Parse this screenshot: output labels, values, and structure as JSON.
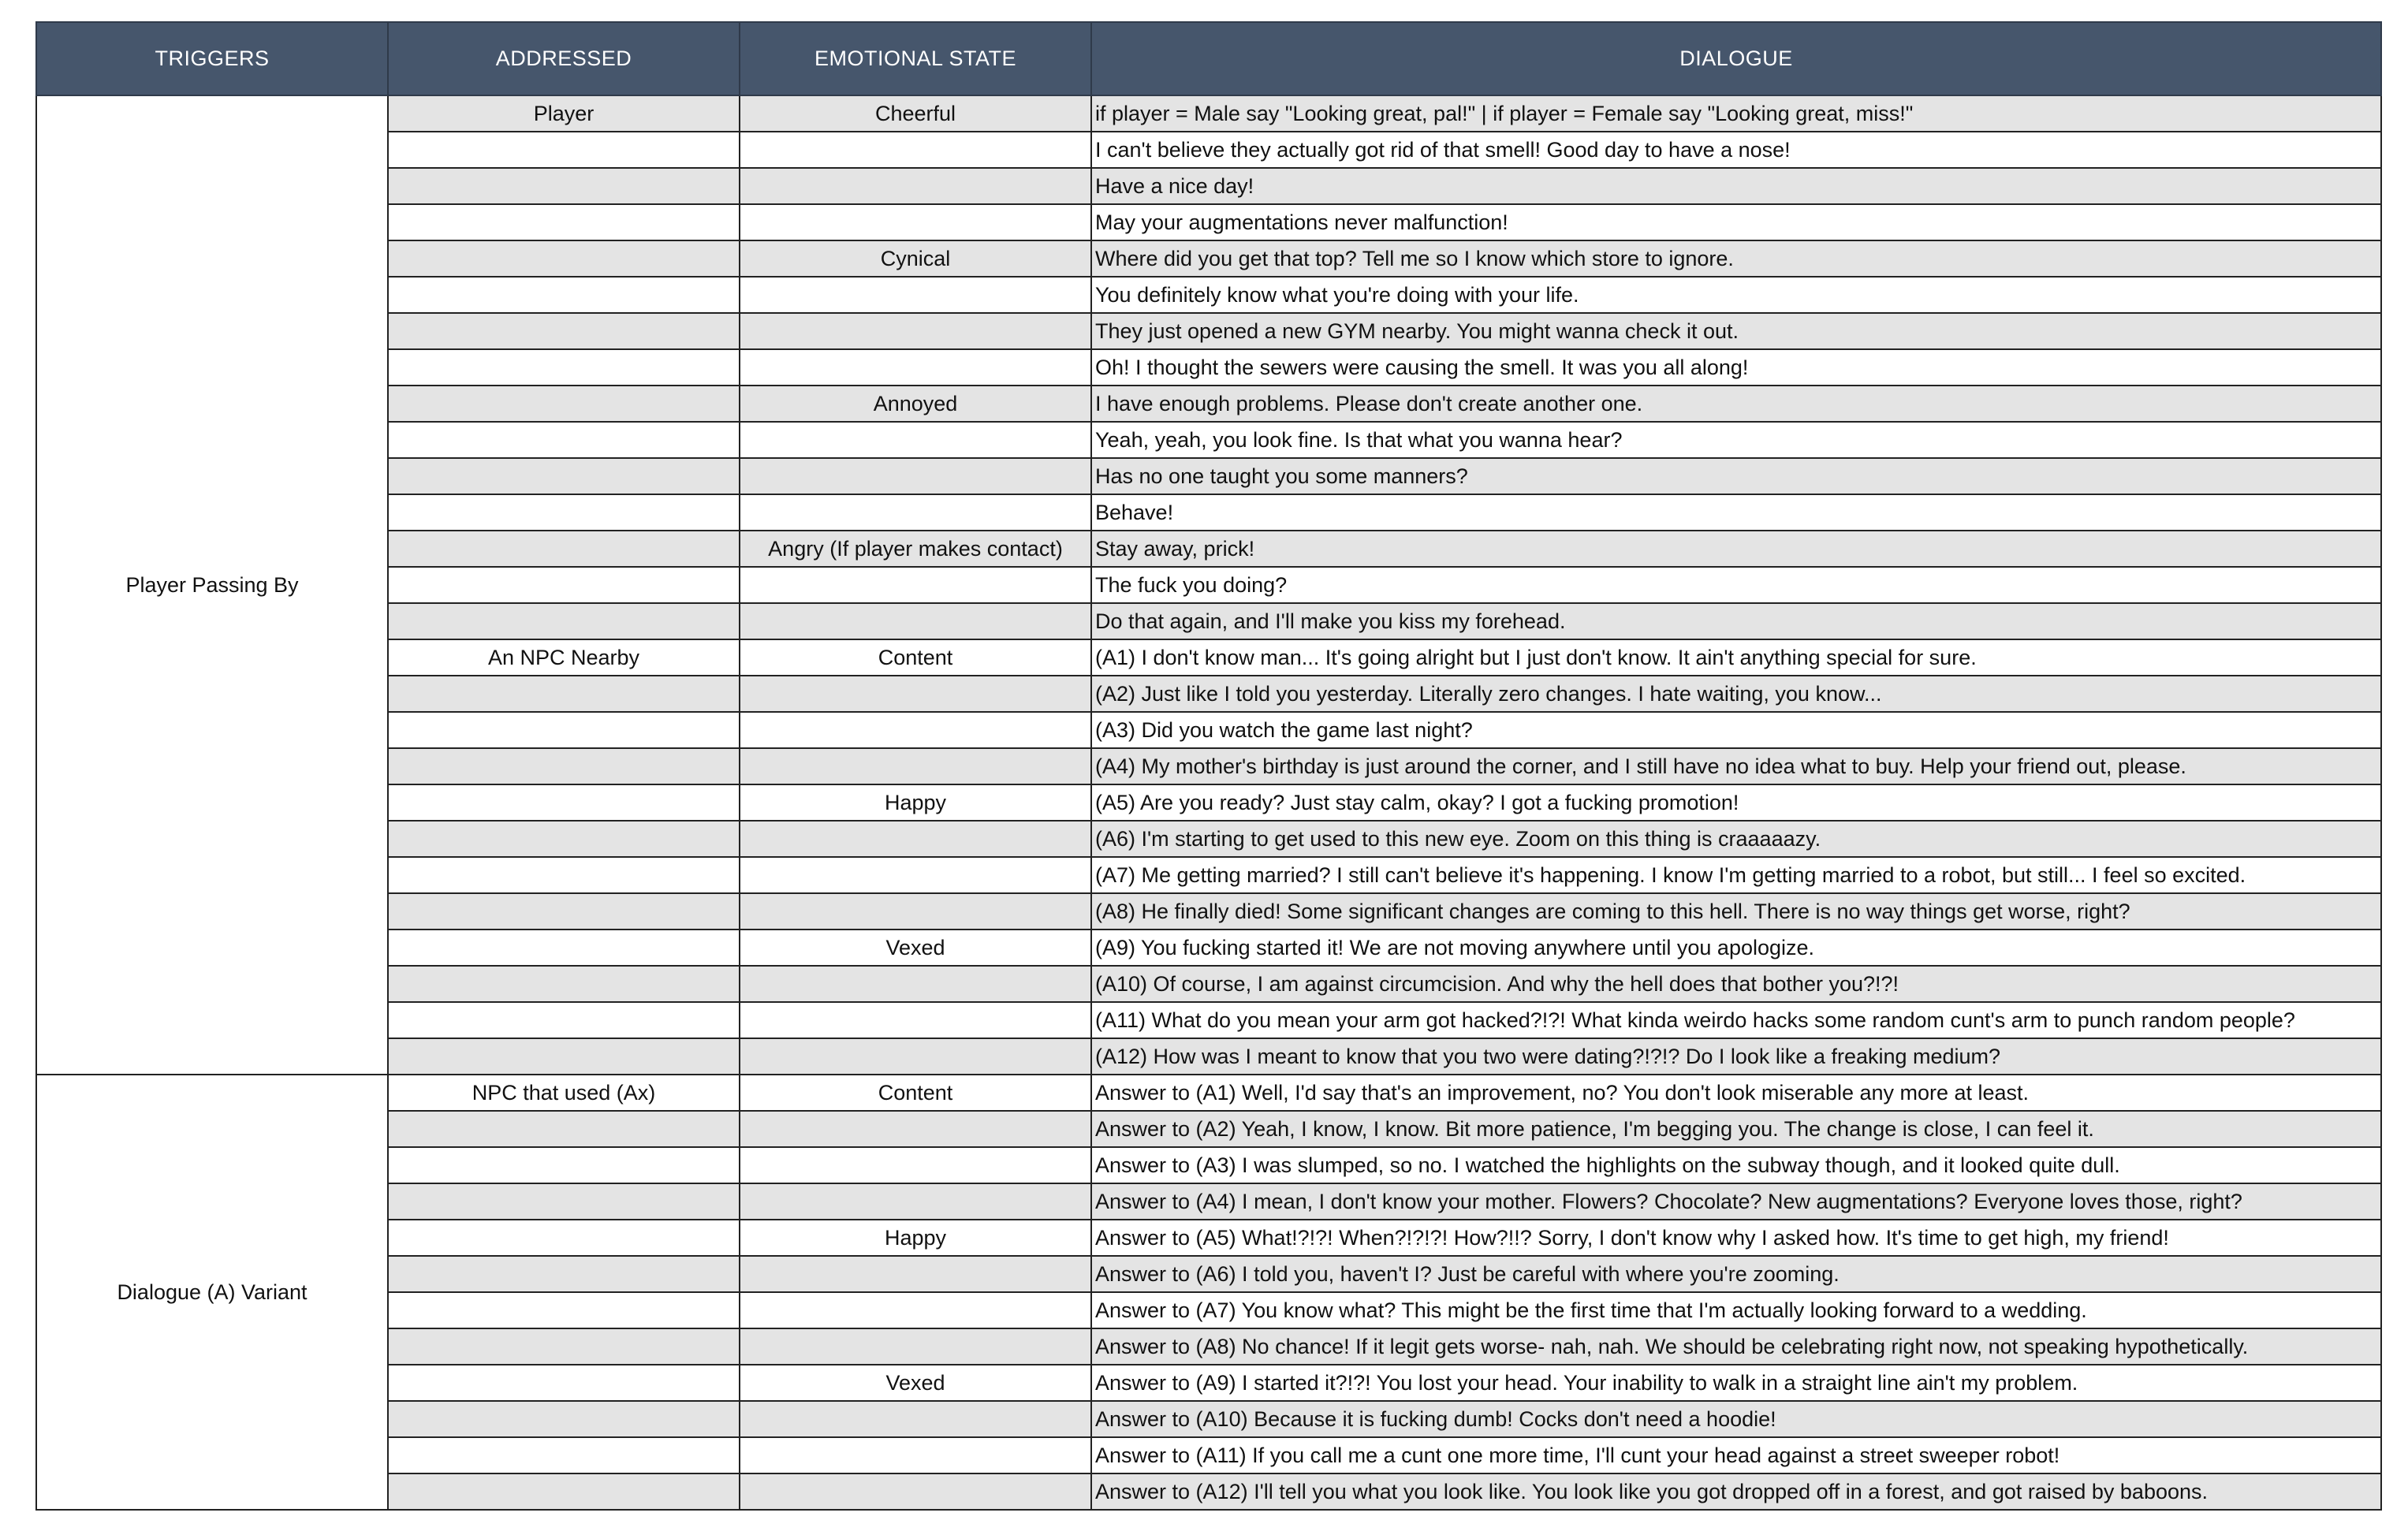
{
  "headers": [
    "TRIGGERS",
    "ADDRESSED",
    "EMOTIONAL STATE",
    "DIALOGUE"
  ],
  "colors": {
    "header_bg": "#46566c",
    "shaded_row": "#e4e4e4"
  },
  "groups": [
    {
      "trigger": "Player Passing By",
      "rows": [
        {
          "addressed": "Player",
          "emotion": "Cheerful",
          "dialogue": "if player = Male say \"Looking great, pal!\"  |  if player = Female say \"Looking great, miss!\""
        },
        {
          "addressed": "",
          "emotion": "",
          "dialogue": "I can't believe they actually got rid of that smell! Good day to have a nose!"
        },
        {
          "addressed": "",
          "emotion": "",
          "dialogue": "Have a nice day!"
        },
        {
          "addressed": "",
          "emotion": "",
          "dialogue": "May your augmentations never malfunction!"
        },
        {
          "addressed": "",
          "emotion": "Cynical",
          "dialogue": "Where did you get that top? Tell me so I know which store to ignore."
        },
        {
          "addressed": "",
          "emotion": "",
          "dialogue": "You definitely know what you're doing with your life."
        },
        {
          "addressed": "",
          "emotion": "",
          "dialogue": "They just opened a new GYM nearby. You might wanna check it out."
        },
        {
          "addressed": "",
          "emotion": "",
          "dialogue": "Oh! I thought the sewers were causing the smell. It was you all along!"
        },
        {
          "addressed": "",
          "emotion": "Annoyed",
          "dialogue": "I have enough problems. Please don't create another one."
        },
        {
          "addressed": "",
          "emotion": "",
          "dialogue": "Yeah, yeah, you look fine. Is that what you wanna hear?"
        },
        {
          "addressed": "",
          "emotion": "",
          "dialogue": "Has no one taught you some manners?"
        },
        {
          "addressed": "",
          "emotion": "",
          "dialogue": "Behave!"
        },
        {
          "addressed": "",
          "emotion": "Angry (If player makes contact)",
          "dialogue": "Stay away, prick!"
        },
        {
          "addressed": "",
          "emotion": "",
          "dialogue": "The fuck you doing?"
        },
        {
          "addressed": "",
          "emotion": "",
          "dialogue": "Do that again, and I'll make you kiss my forehead."
        },
        {
          "addressed": "An NPC Nearby",
          "emotion": "Content",
          "dialogue": "(A1) I don't know man... It's going alright but I just don't know. It ain't anything special for sure."
        },
        {
          "addressed": "",
          "emotion": "",
          "dialogue": "(A2) Just like I told you yesterday. Literally zero changes. I hate waiting, you know..."
        },
        {
          "addressed": "",
          "emotion": "",
          "dialogue": "(A3) Did you watch the game last night?"
        },
        {
          "addressed": "",
          "emotion": "",
          "dialogue": "(A4) My mother's birthday is just around the corner, and I still have no idea what to buy. Help your friend out, please."
        },
        {
          "addressed": "",
          "emotion": "Happy",
          "dialogue": "(A5) Are you ready? Just stay calm, okay? I got a fucking promotion!"
        },
        {
          "addressed": "",
          "emotion": "",
          "dialogue": "(A6) I'm starting to get used to this new eye. Zoom on this thing is craaaaazy."
        },
        {
          "addressed": "",
          "emotion": "",
          "dialogue": "(A7) Me getting married? I still can't believe it's happening. I know I'm getting married to a robot, but still... I feel so excited."
        },
        {
          "addressed": "",
          "emotion": "",
          "dialogue": "(A8) He finally died! Some significant changes are coming to this hell. There is no way things get worse, right?"
        },
        {
          "addressed": "",
          "emotion": "Vexed",
          "dialogue": "(A9) You fucking started it! We are not moving anywhere until you apologize."
        },
        {
          "addressed": "",
          "emotion": "",
          "dialogue": "(A10) Of course, I am against circumcision. And why the hell does that bother you?!?!"
        },
        {
          "addressed": "",
          "emotion": "",
          "dialogue": "(A11) What do you mean your arm got hacked?!?! What kinda weirdo hacks some random cunt's arm to punch random people?"
        },
        {
          "addressed": "",
          "emotion": "",
          "dialogue": "(A12) How was I meant to know that you two were dating?!?!? Do I look like a freaking medium?"
        }
      ]
    },
    {
      "trigger": "Dialogue (A) Variant",
      "rows": [
        {
          "addressed": "NPC that used (Ax)",
          "emotion": "Content",
          "dialogue": "Answer to (A1) Well, I'd say that's an improvement, no? You don't look miserable any more at least."
        },
        {
          "addressed": "",
          "emotion": "",
          "dialogue": "Answer to (A2) Yeah, I know, I know. Bit more patience, I'm begging you. The change is close, I can feel it."
        },
        {
          "addressed": "",
          "emotion": "",
          "dialogue": "Answer to (A3) I was slumped, so no. I watched the highlights on the subway though, and it looked quite dull."
        },
        {
          "addressed": "",
          "emotion": "",
          "dialogue": "Answer to (A4) I mean, I don't know your mother. Flowers? Chocolate? New augmentations? Everyone loves those, right?"
        },
        {
          "addressed": "",
          "emotion": "Happy",
          "dialogue": "Answer to (A5) What!?!?! When?!?!?! How?!!? Sorry, I don't know why I asked how. It's time to get high, my friend!"
        },
        {
          "addressed": "",
          "emotion": "",
          "dialogue": "Answer to (A6) I told you, haven't I? Just be careful with where you're zooming."
        },
        {
          "addressed": "",
          "emotion": "",
          "dialogue": "Answer to (A7) You know what? This might be the first time that I'm actually looking forward to a wedding."
        },
        {
          "addressed": "",
          "emotion": "",
          "dialogue": "Answer to (A8) No chance! If it legit gets worse- nah, nah. We should be celebrating right now, not speaking hypothetically."
        },
        {
          "addressed": "",
          "emotion": "Vexed",
          "dialogue": "Answer to (A9) I started it?!?! You lost your head. Your inability to walk in a straight line ain't my problem."
        },
        {
          "addressed": "",
          "emotion": "",
          "dialogue": "Answer to (A10) Because it is fucking dumb! Cocks don't need a hoodie!"
        },
        {
          "addressed": "",
          "emotion": "",
          "dialogue": "Answer to (A11) If you call me a cunt one more time, I'll cunt your head against a street sweeper robot!"
        },
        {
          "addressed": "",
          "emotion": "",
          "dialogue": "Answer to (A12) I'll tell you what you look like. You look like you got dropped off in a forest, and got raised by baboons."
        }
      ]
    }
  ]
}
